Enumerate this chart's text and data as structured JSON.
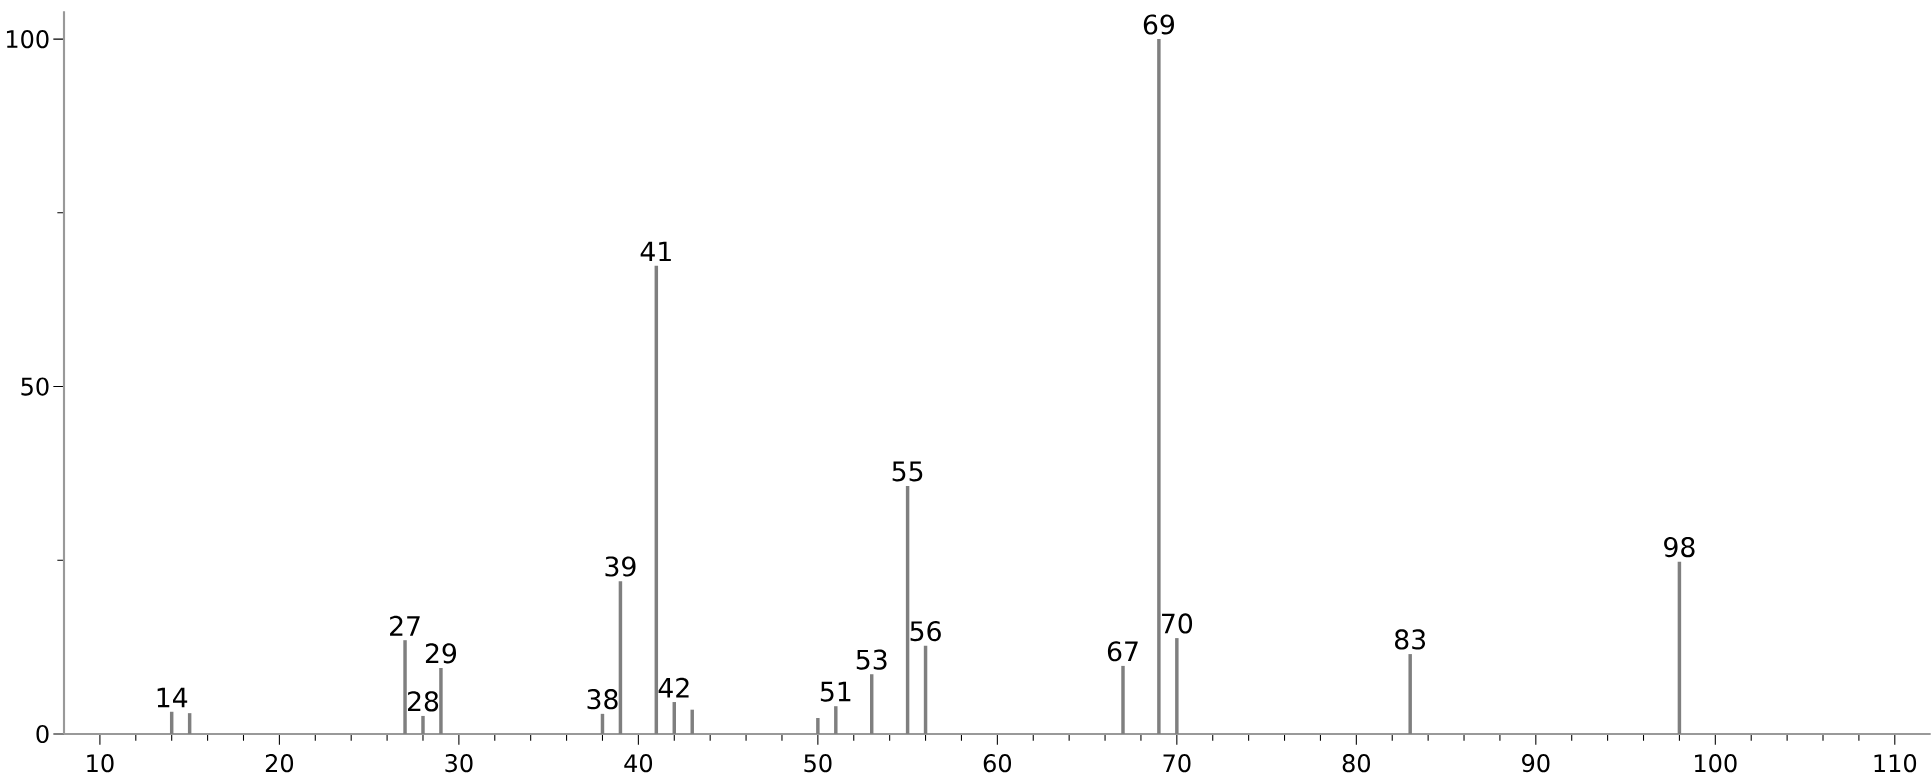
{
  "chart_data": {
    "type": "bar",
    "color": "#7f7f7f",
    "x": [
      14,
      15,
      27,
      28,
      29,
      38,
      39,
      41,
      42,
      43,
      50,
      51,
      53,
      55,
      56,
      67,
      69,
      70,
      83,
      98
    ],
    "values": [
      3.2,
      3,
      13.5,
      2.6,
      9.5,
      2.9,
      22,
      67.4,
      4.6,
      3.5,
      2.3,
      4,
      8.6,
      35.7,
      12.7,
      9.8,
      100,
      13.8,
      11.5,
      24.8
    ],
    "xlim": [
      8,
      112
    ],
    "ylim": [
      0,
      104
    ],
    "xticks": [
      10,
      20,
      30,
      40,
      50,
      60,
      70,
      80,
      90,
      100,
      110
    ],
    "yticks": [
      0,
      50,
      100
    ],
    "annotations": [
      {
        "text": "14",
        "x": 14,
        "y": 3.2
      },
      {
        "text": "27",
        "x": 27,
        "y": 13.5
      },
      {
        "text": "28",
        "x": 28,
        "y": 2.6
      },
      {
        "text": "29",
        "x": 29,
        "y": 9.5
      },
      {
        "text": "38",
        "x": 38,
        "y": 2.9
      },
      {
        "text": "39",
        "x": 39,
        "y": 22
      },
      {
        "text": "41",
        "x": 41,
        "y": 67.4
      },
      {
        "text": "42",
        "x": 42,
        "y": 4.6
      },
      {
        "text": "51",
        "x": 51,
        "y": 4
      },
      {
        "text": "53",
        "x": 53,
        "y": 8.6
      },
      {
        "text": "55",
        "x": 55,
        "y": 35.7
      },
      {
        "text": "56",
        "x": 56,
        "y": 12.7
      },
      {
        "text": "67",
        "x": 67,
        "y": 9.8
      },
      {
        "text": "69",
        "x": 69,
        "y": 100
      },
      {
        "text": "70",
        "x": 70,
        "y": 13.8
      },
      {
        "text": "83",
        "x": 83,
        "y": 11.5
      },
      {
        "text": "98",
        "x": 98,
        "y": 24.8
      }
    ]
  }
}
